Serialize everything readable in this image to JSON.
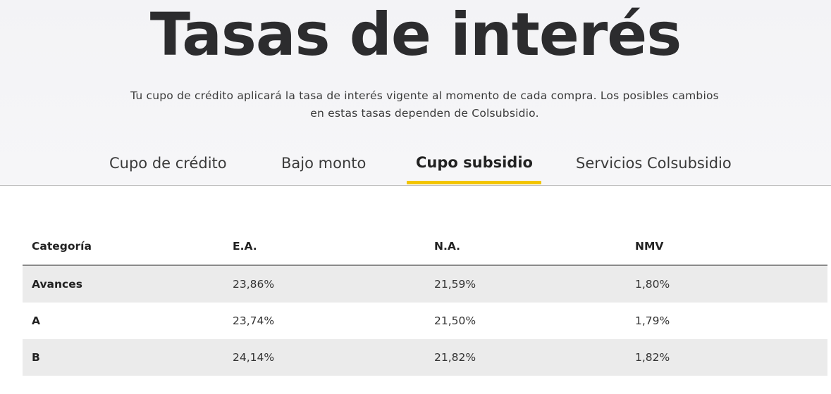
{
  "header": {
    "title": "Tasas de interés",
    "description": "Tu cupo de crédito aplicará la tasa de interés vigente al momento de cada compra. Los posibles cambios en estas tasas dependen de Colsubsidio."
  },
  "tabs": [
    {
      "label": "Cupo de crédito",
      "active": false
    },
    {
      "label": "Bajo monto",
      "active": false
    },
    {
      "label": "Cupo subsidio",
      "active": true
    },
    {
      "label": "Servicios Colsubsidio",
      "active": false
    }
  ],
  "colors": {
    "accent": "#f2c500",
    "row_shade": "#ebebeb",
    "hero_bg": "#f4f4f7"
  },
  "table": {
    "headers": [
      "Categoría",
      "E.A.",
      "N.A.",
      "NMV"
    ],
    "rows": [
      [
        "Avances",
        "23,86%",
        "21,59%",
        "1,80%"
      ],
      [
        "A",
        "23,74%",
        "21,50%",
        "1,79%"
      ],
      [
        "B",
        "24,14%",
        "21,82%",
        "1,82%"
      ]
    ]
  }
}
